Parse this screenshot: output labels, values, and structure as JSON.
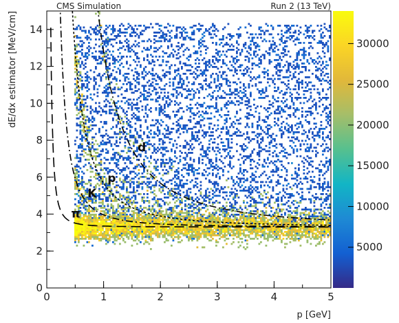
{
  "header": {
    "left_label": "CMS Simulation",
    "right_label": "Run 2 (13 TeV)"
  },
  "chart_data": {
    "type": "heatmap",
    "xlabel": "p [GeV]",
    "ylabel": "dE/dx estimator [MeV/cm]",
    "xlim": [
      0,
      5
    ],
    "ylim": [
      0,
      15
    ],
    "x_ticks": [
      "0",
      "1",
      "2",
      "3",
      "4",
      "5"
    ],
    "y_ticks": [
      "0",
      "2",
      "4",
      "6",
      "8",
      "10",
      "12",
      "14"
    ],
    "colorbar": {
      "min": 0,
      "max": 34000,
      "ticks": [
        "5000",
        "10000",
        "15000",
        "20000",
        "25000",
        "30000"
      ],
      "palette": [
        "#352a87",
        "#1360d2",
        "#1e8ad4",
        "#12b5c5",
        "#56c08f",
        "#a5be69",
        "#e1b83a",
        "#fbd525",
        "#f9fb0e"
      ]
    },
    "bands": [
      {
        "label": "π",
        "mass_gev": 0.14,
        "curve_style": "dashed"
      },
      {
        "label": "K",
        "mass_gev": 0.494,
        "curve_style": "dash-dot"
      },
      {
        "label": "p",
        "mass_gev": 0.938,
        "curve_style": "dotted"
      },
      {
        "label": "d",
        "mass_gev": 1.876,
        "curve_style": "dash-dot"
      }
    ],
    "curve_model": {
      "K": 2.7,
      "C": 3.3
    },
    "mip_plateau": 3.3,
    "track_p_min": 0.5
  }
}
